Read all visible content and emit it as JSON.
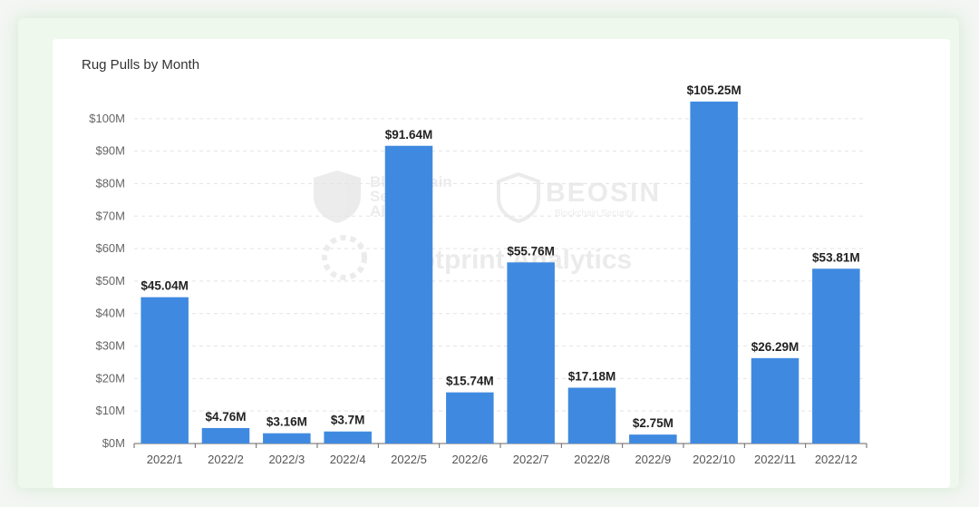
{
  "chart_data": {
    "type": "bar",
    "title": "Rug Pulls by Month",
    "xlabel": "",
    "ylabel": "",
    "categories": [
      "2022/1",
      "2022/2",
      "2022/3",
      "2022/4",
      "2022/5",
      "2022/6",
      "2022/7",
      "2022/8",
      "2022/9",
      "2022/10",
      "2022/11",
      "2022/12"
    ],
    "values": [
      45.04,
      4.76,
      3.16,
      3.7,
      91.64,
      15.74,
      55.76,
      17.18,
      2.75,
      105.25,
      26.29,
      53.81
    ],
    "value_labels": [
      "$45.04M",
      "$4.76M",
      "$3.16M",
      "$3.7M",
      "$91.64M",
      "$15.74M",
      "$55.76M",
      "$17.18M",
      "$2.75M",
      "$105.25M",
      "$26.29M",
      "$53.81M"
    ],
    "yticks": [
      0,
      10,
      20,
      30,
      40,
      50,
      60,
      70,
      80,
      90,
      100
    ],
    "ytick_labels": [
      "$0M",
      "$10M",
      "$20M",
      "$30M",
      "$40M",
      "$50M",
      "$60M",
      "$70M",
      "$80M",
      "$90M",
      "$100M"
    ],
    "ylim": [
      0,
      110
    ],
    "grid": true,
    "bar_color": "#3f8ae0"
  },
  "watermarks": {
    "bsa_line1": "Blockchain",
    "bsa_line2": "Security",
    "bsa_line3": "Alliance",
    "beosin": "BEOSIN",
    "beosin_sub": "Blockchain Security",
    "footprint": "Footprint Analytics"
  }
}
